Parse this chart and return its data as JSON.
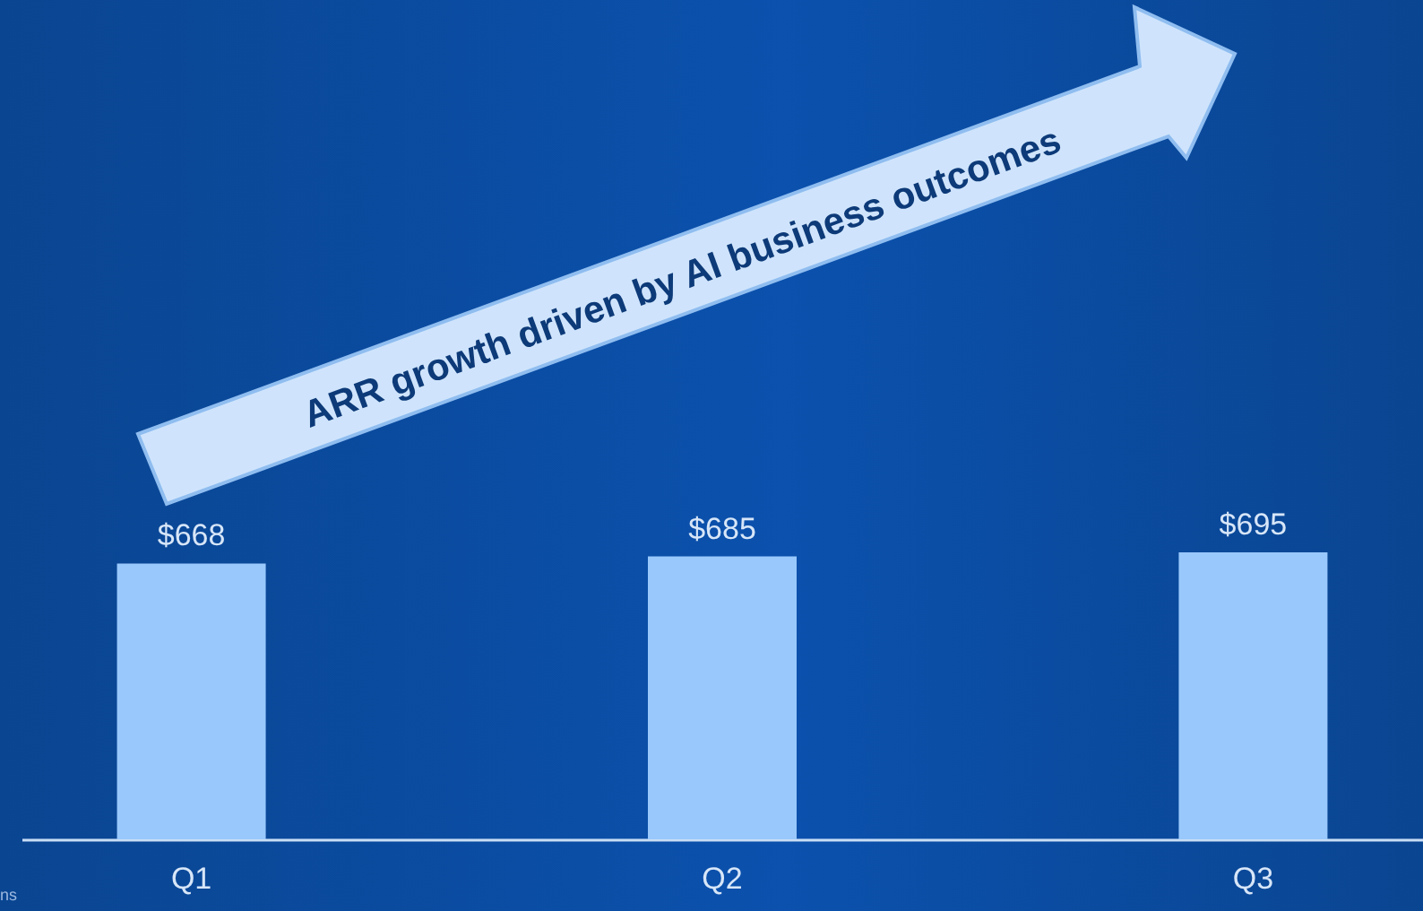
{
  "chart_data": {
    "type": "bar",
    "categories": [
      "Q1",
      "Q2",
      "Q3"
    ],
    "values": [
      668,
      685,
      695
    ],
    "value_labels": [
      "$668",
      "$685",
      "$695"
    ],
    "color": "#99c8fc",
    "annotations": [
      "ARR growth driven by AI business outcomes",
      "ns"
    ]
  }
}
